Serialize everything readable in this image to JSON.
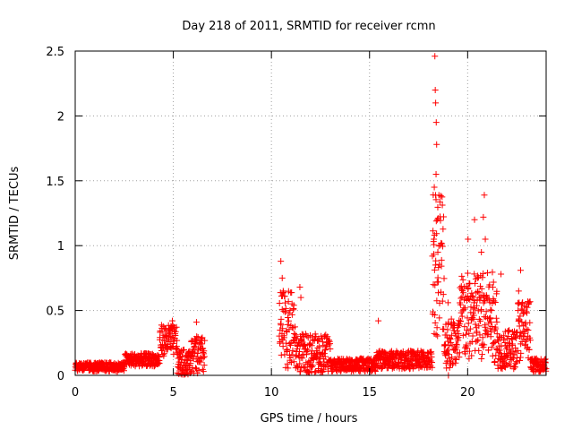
{
  "chart_data": {
    "type": "scatter",
    "title": "Day 218 of 2011, SRMTID for receiver rcmn",
    "xlabel": "GPS time / hours",
    "ylabel": "SRMTID / TECUs",
    "xlim": [
      0,
      24
    ],
    "ylim": [
      0,
      2.5
    ],
    "grid": true,
    "marker": "+",
    "marker_color": "#ff0000",
    "x_ticks": [
      {
        "value": 0,
        "label": "0"
      },
      {
        "value": 5,
        "label": "5"
      },
      {
        "value": 10,
        "label": "10"
      },
      {
        "value": 15,
        "label": "15"
      },
      {
        "value": 20,
        "label": "20"
      }
    ],
    "y_ticks": [
      {
        "value": 0,
        "label": "0"
      },
      {
        "value": 0.5,
        "label": "0.5"
      },
      {
        "value": 1,
        "label": "1"
      },
      {
        "value": 1.5,
        "label": "1.5"
      },
      {
        "value": 2,
        "label": "2"
      },
      {
        "value": 2.5,
        "label": "2.5"
      }
    ],
    "segments": [
      {
        "x_start": 0.0,
        "x_end": 2.5,
        "base": 0.065,
        "spread": 0.035
      },
      {
        "x_start": 2.5,
        "x_end": 4.3,
        "base": 0.12,
        "spread": 0.05
      },
      {
        "x_start": 4.3,
        "x_end": 5.2,
        "base": 0.27,
        "spread": 0.12
      },
      {
        "x_start": 5.2,
        "x_end": 5.9,
        "base": 0.1,
        "spread": 0.1
      },
      {
        "x_start": 5.9,
        "x_end": 6.6,
        "base": 0.15,
        "spread": 0.15
      },
      {
        "x_start": 10.4,
        "x_end": 11.2,
        "base": 0.35,
        "spread": 0.3
      },
      {
        "x_start": 11.2,
        "x_end": 13.0,
        "base": 0.17,
        "spread": 0.15
      },
      {
        "x_start": 13.0,
        "x_end": 15.3,
        "base": 0.08,
        "spread": 0.05
      },
      {
        "x_start": 15.3,
        "x_end": 18.2,
        "base": 0.12,
        "spread": 0.07
      },
      {
        "x_start": 18.2,
        "x_end": 18.8,
        "base": 0.9,
        "spread": 0.6
      },
      {
        "x_start": 18.8,
        "x_end": 19.6,
        "base": 0.25,
        "spread": 0.2
      },
      {
        "x_start": 19.6,
        "x_end": 21.5,
        "base": 0.45,
        "spread": 0.35
      },
      {
        "x_start": 21.5,
        "x_end": 22.5,
        "base": 0.2,
        "spread": 0.15
      },
      {
        "x_start": 22.5,
        "x_end": 23.2,
        "base": 0.35,
        "spread": 0.25
      },
      {
        "x_start": 23.2,
        "x_end": 24.0,
        "base": 0.08,
        "spread": 0.05
      }
    ],
    "highlights": [
      [
        18.33,
        2.46
      ],
      [
        18.35,
        2.2
      ],
      [
        18.37,
        2.1
      ],
      [
        18.4,
        1.95
      ],
      [
        18.42,
        1.78
      ],
      [
        18.39,
        1.55
      ],
      [
        18.3,
        1.45
      ],
      [
        18.45,
        1.2
      ],
      [
        18.28,
        1.05
      ],
      [
        18.48,
        0.95
      ],
      [
        18.36,
        0.85
      ],
      [
        18.5,
        0.72
      ],
      [
        18.25,
        0.7
      ],
      [
        10.48,
        0.88
      ],
      [
        10.55,
        0.75
      ],
      [
        10.6,
        0.65
      ],
      [
        11.45,
        0.68
      ],
      [
        11.5,
        0.6
      ],
      [
        15.45,
        0.42
      ],
      [
        6.18,
        0.41
      ],
      [
        4.95,
        0.42
      ],
      [
        4.88,
        0.38
      ],
      [
        20.35,
        1.2
      ],
      [
        20.8,
        1.22
      ],
      [
        20.85,
        1.39
      ],
      [
        20.9,
        1.05
      ],
      [
        20.02,
        1.05
      ],
      [
        20.7,
        0.95
      ],
      [
        20.5,
        0.75
      ],
      [
        21.7,
        0.78
      ],
      [
        22.7,
        0.81
      ],
      [
        22.6,
        0.65
      ],
      [
        19.0,
        0.56
      ],
      [
        19.02,
        0.0
      ]
    ]
  }
}
